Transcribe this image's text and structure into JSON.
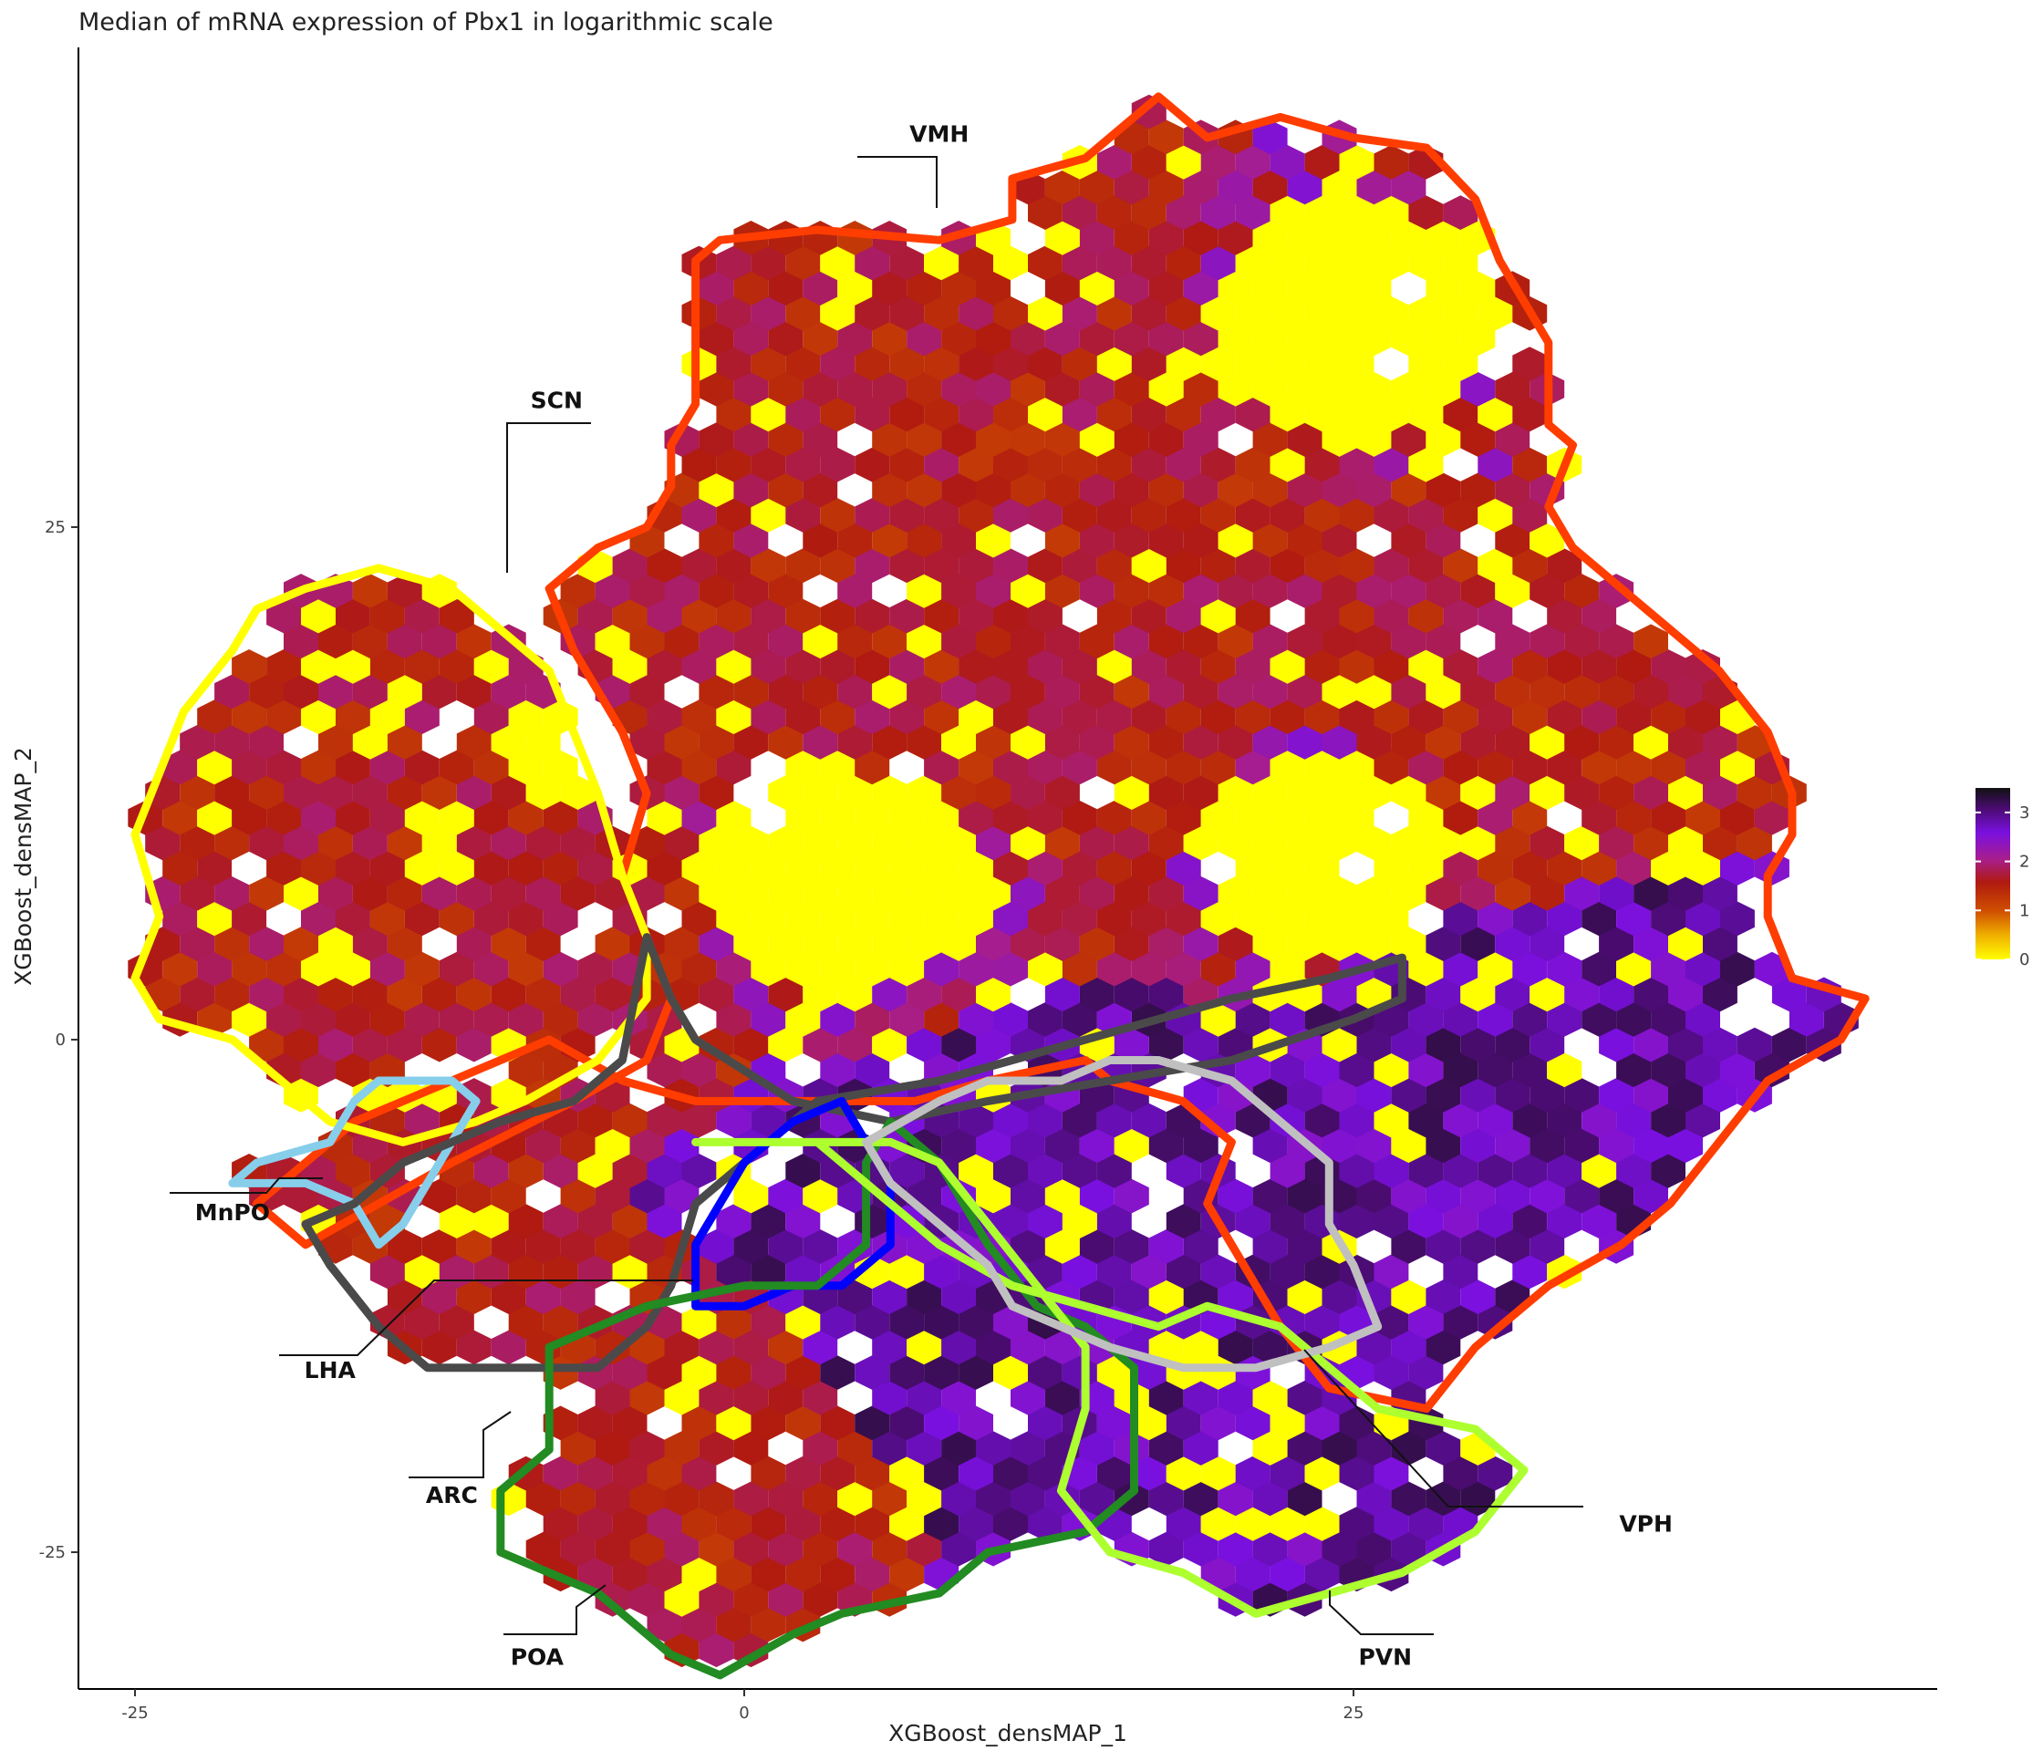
{
  "chart_data": {
    "type": "hexbin",
    "title": "Median of mRNA expression of Pbx1 in logarithmic scale",
    "xlabel": "XGBoost_densMAP_1",
    "ylabel": "XGBoost_densMAP_2",
    "xlim": [
      -27,
      49
    ],
    "ylim": [
      -32,
      48
    ],
    "x_ticks": [
      -25,
      0,
      25
    ],
    "y_ticks": [
      -25,
      0,
      25
    ],
    "grid": false,
    "legend": {
      "position": "right",
      "title": "",
      "ticks": [
        0,
        1,
        2,
        3
      ],
      "range": [
        0,
        3.5
      ],
      "colors": [
        "#ffff00",
        "#e88a00",
        "#c03000",
        "#b02080",
        "#7a10e0",
        "#3a0a40",
        "#111111"
      ]
    },
    "regions": [
      {
        "label": "VMH",
        "color": "#ff3d00",
        "label_xy": [
          8.0,
          43.8
        ],
        "outline": [
          [
            -2,
            38
          ],
          [
            -1,
            39
          ],
          [
            3,
            39.5
          ],
          [
            8,
            39
          ],
          [
            11,
            40
          ],
          [
            11,
            42
          ],
          [
            14,
            43
          ],
          [
            16,
            45
          ],
          [
            17,
            46
          ],
          [
            18,
            45
          ],
          [
            19,
            44
          ],
          [
            22,
            45
          ],
          [
            25,
            44
          ],
          [
            28,
            43.5
          ],
          [
            30,
            41
          ],
          [
            31,
            38
          ],
          [
            32,
            36
          ],
          [
            33,
            34
          ],
          [
            33,
            32
          ],
          [
            33,
            30
          ],
          [
            34,
            29
          ],
          [
            33,
            26
          ],
          [
            34,
            24
          ],
          [
            36,
            22
          ],
          [
            38,
            20
          ],
          [
            40,
            18
          ],
          [
            42,
            15
          ],
          [
            43,
            12
          ],
          [
            43,
            10
          ],
          [
            42,
            8
          ],
          [
            42,
            6
          ],
          [
            43,
            3
          ],
          [
            46,
            2
          ],
          [
            45,
            0
          ],
          [
            42,
            -2
          ],
          [
            40,
            -5
          ],
          [
            38,
            -8
          ],
          [
            36,
            -10
          ],
          [
            33,
            -12
          ],
          [
            30,
            -15
          ],
          [
            28,
            -18
          ],
          [
            24,
            -17
          ],
          [
            22,
            -14
          ],
          [
            21,
            -12
          ],
          [
            20,
            -10
          ],
          [
            19,
            -8
          ],
          [
            20,
            -5
          ],
          [
            18,
            -3
          ],
          [
            15,
            -2
          ],
          [
            14,
            -1
          ],
          [
            10,
            -2
          ],
          [
            7,
            -3
          ],
          [
            2,
            -3
          ],
          [
            -2,
            -3
          ],
          [
            -5,
            -2
          ],
          [
            -8,
            0
          ],
          [
            -12,
            -2
          ],
          [
            -16,
            -4
          ],
          [
            -20,
            -8
          ],
          [
            -18,
            -10
          ],
          [
            -12,
            -6
          ],
          [
            -7,
            -3
          ],
          [
            -4,
            -1
          ],
          [
            -3,
            2
          ],
          [
            -4,
            5
          ],
          [
            -5,
            8
          ],
          [
            -4,
            12
          ],
          [
            -5,
            15
          ],
          [
            -7,
            19
          ],
          [
            -8,
            22
          ],
          [
            -6,
            24
          ],
          [
            -4,
            25
          ],
          [
            -3,
            27
          ],
          [
            -3,
            29
          ],
          [
            -2,
            31
          ],
          [
            -2,
            35
          ]
        ]
      },
      {
        "label": "SCN",
        "color": "#ffff00",
        "label_xy": [
          -7.7,
          30.8
        ],
        "outline": [
          [
            -18,
            22
          ],
          [
            -15,
            23
          ],
          [
            -12,
            22
          ],
          [
            -10,
            20
          ],
          [
            -8,
            18
          ],
          [
            -7,
            15
          ],
          [
            -6,
            12
          ],
          [
            -5,
            8
          ],
          [
            -4,
            5
          ],
          [
            -4,
            2
          ],
          [
            -6,
            -1
          ],
          [
            -9,
            -3
          ],
          [
            -11,
            -4
          ],
          [
            -14,
            -5
          ],
          [
            -17,
            -4
          ],
          [
            -19,
            -2
          ],
          [
            -21,
            0
          ],
          [
            -24,
            1
          ],
          [
            -25,
            3
          ],
          [
            -24,
            6
          ],
          [
            -25,
            10
          ],
          [
            -24,
            13
          ],
          [
            -23,
            16
          ],
          [
            -21,
            19
          ],
          [
            -20,
            21
          ]
        ]
      },
      {
        "label": "MnPO",
        "color": "#87ceeb",
        "label_xy": [
          -21.0,
          -8.8
        ],
        "outline": [
          [
            -15,
            -2
          ],
          [
            -12,
            -2
          ],
          [
            -11,
            -3
          ],
          [
            -13,
            -7
          ],
          [
            -14,
            -9
          ],
          [
            -15,
            -10
          ],
          [
            -16,
            -8
          ],
          [
            -18,
            -7
          ],
          [
            -21,
            -7
          ],
          [
            -20,
            -6
          ],
          [
            -17,
            -5
          ],
          [
            -16,
            -3
          ]
        ]
      },
      {
        "label": "LHA",
        "color": "#4a4a4a",
        "label_xy": [
          -17.0,
          -16.5
        ],
        "outline": [
          [
            -4,
            5
          ],
          [
            -3,
            2
          ],
          [
            -2,
            0
          ],
          [
            2,
            -3
          ],
          [
            6,
            -4
          ],
          [
            10,
            -3
          ],
          [
            15,
            -2
          ],
          [
            20,
            -1
          ],
          [
            25,
            1
          ],
          [
            27,
            2
          ],
          [
            27,
            4
          ],
          [
            24,
            3
          ],
          [
            20,
            2
          ],
          [
            14,
            0
          ],
          [
            8,
            -2
          ],
          [
            3,
            -3
          ],
          [
            1,
            -5
          ],
          [
            -2,
            -8
          ],
          [
            -3,
            -12
          ],
          [
            -4,
            -14
          ],
          [
            -6,
            -16
          ],
          [
            -10,
            -16
          ],
          [
            -13,
            -16
          ],
          [
            -15,
            -14
          ],
          [
            -17,
            -11
          ],
          [
            -18,
            -9
          ],
          [
            -16,
            -8
          ],
          [
            -14,
            -6
          ],
          [
            -10,
            -4
          ],
          [
            -7,
            -3
          ],
          [
            -5,
            -1
          ]
        ]
      },
      {
        "label": "ARC",
        "color": "#0000ff",
        "label_xy": [
          -12.0,
          -22.6
        ],
        "outline": [
          [
            0,
            -6
          ],
          [
            2,
            -4
          ],
          [
            4,
            -3
          ],
          [
            5,
            -5
          ],
          [
            6,
            -7
          ],
          [
            6,
            -10
          ],
          [
            4,
            -12
          ],
          [
            2,
            -12
          ],
          [
            0,
            -13
          ],
          [
            -2,
            -13
          ],
          [
            -2,
            -10
          ]
        ]
      },
      {
        "label": "POA",
        "color": "#228b22",
        "label_xy": [
          -8.5,
          -30.5
        ],
        "outline": [
          [
            -8,
            -15
          ],
          [
            -4,
            -13
          ],
          [
            0,
            -12
          ],
          [
            3,
            -12
          ],
          [
            5,
            -10
          ],
          [
            5,
            -6
          ],
          [
            6,
            -4
          ],
          [
            8,
            -6
          ],
          [
            10,
            -10
          ],
          [
            12,
            -13
          ],
          [
            14,
            -14
          ],
          [
            16,
            -16
          ],
          [
            16,
            -22
          ],
          [
            14,
            -24
          ],
          [
            10,
            -25
          ],
          [
            8,
            -27
          ],
          [
            4,
            -28
          ],
          [
            2,
            -29
          ],
          [
            -1,
            -31
          ],
          [
            -3,
            -30
          ],
          [
            -6,
            -27
          ],
          [
            -10,
            -25
          ],
          [
            -10,
            -22
          ],
          [
            -8,
            -20
          ],
          [
            -8,
            -17
          ]
        ]
      },
      {
        "label": "PVN",
        "color": "#adff2f",
        "label_xy": [
          26.3,
          -30.5
        ],
        "outline": [
          [
            -2,
            -5
          ],
          [
            3,
            -5
          ],
          [
            6,
            -5
          ],
          [
            8,
            -6
          ],
          [
            10,
            -9
          ],
          [
            12,
            -12
          ],
          [
            14,
            -15
          ],
          [
            14,
            -18
          ],
          [
            13,
            -22
          ],
          [
            15,
            -25
          ],
          [
            18,
            -26
          ],
          [
            21,
            -28
          ],
          [
            24,
            -27
          ],
          [
            27,
            -26
          ],
          [
            30,
            -24
          ],
          [
            32,
            -21
          ],
          [
            30,
            -19
          ],
          [
            26,
            -18
          ],
          [
            24,
            -16
          ],
          [
            22,
            -14
          ],
          [
            19,
            -13
          ],
          [
            17,
            -14
          ],
          [
            14,
            -13
          ],
          [
            11,
            -12
          ],
          [
            8,
            -10
          ],
          [
            6,
            -8
          ],
          [
            3,
            -5
          ]
        ]
      },
      {
        "label": "VPH",
        "color": "#c0c0c0",
        "label_xy": [
          37.0,
          -24.0
        ],
        "outline": [
          [
            5,
            -5
          ],
          [
            8,
            -3
          ],
          [
            10,
            -2
          ],
          [
            13,
            -2
          ],
          [
            15,
            -1
          ],
          [
            17,
            -1
          ],
          [
            20,
            -2
          ],
          [
            22,
            -4
          ],
          [
            24,
            -6
          ],
          [
            24,
            -9
          ],
          [
            25,
            -11
          ],
          [
            26,
            -14
          ],
          [
            24,
            -15
          ],
          [
            21,
            -16
          ],
          [
            18,
            -16
          ],
          [
            15,
            -15
          ],
          [
            13,
            -14
          ],
          [
            11,
            -13
          ],
          [
            10,
            -11
          ],
          [
            8,
            -9
          ],
          [
            6,
            -7
          ]
        ]
      }
    ],
    "hex_fields": [
      {
        "type": "purple",
        "center": [
          38,
          -3
        ],
        "radius": 11
      },
      {
        "type": "purple",
        "center": [
          10,
          -13
        ],
        "radius": 10
      },
      {
        "type": "red",
        "center": [
          -15,
          8
        ],
        "radius": 12
      },
      {
        "type": "red",
        "center": [
          8,
          25
        ],
        "radius": 14
      },
      {
        "type": "red",
        "center": [
          34,
          15
        ],
        "radius": 8
      },
      {
        "type": "red",
        "center": [
          -1,
          -20
        ],
        "radius": 8
      },
      {
        "type": "yellow",
        "center": [
          25,
          35
        ],
        "radius": 6
      },
      {
        "type": "yellow",
        "center": [
          4,
          8
        ],
        "radius": 6
      },
      {
        "type": "yellow",
        "center": [
          24,
          9
        ],
        "radius": 5
      },
      {
        "type": "yellow",
        "center": [
          -8,
          14
        ],
        "radius": 3
      },
      {
        "type": "yellow",
        "center": [
          6,
          17
        ],
        "radius": 2
      }
    ]
  }
}
